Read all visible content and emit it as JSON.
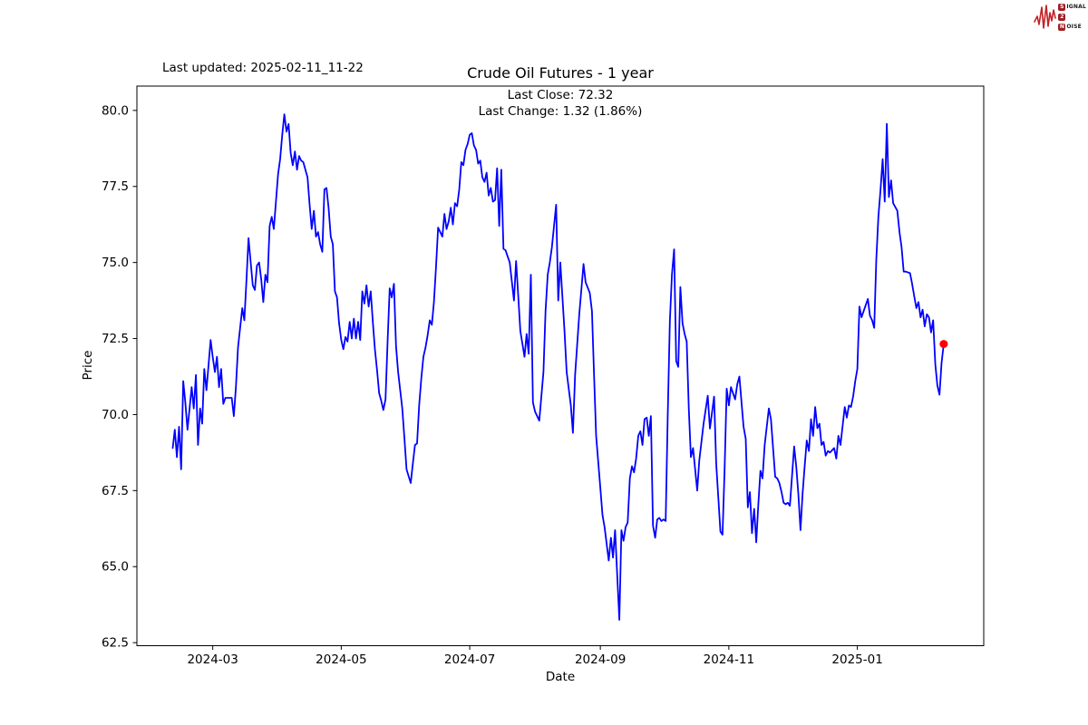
{
  "header": {
    "last_updated": "Last updated: 2025-02-11_11-22",
    "title": "Crude Oil Futures - 1 year",
    "subtitle_line1": "Last Close: 72.32",
    "subtitle_line2": "Last Change: 1.32 (1.86%)"
  },
  "axes": {
    "x_label": "Date",
    "y_label": "Price"
  },
  "branding": {
    "logo": {
      "word1_initial": "S",
      "word1_rest": "IGNAL",
      "word2": "2",
      "word3_initial": "N",
      "word3_rest": "OISE",
      "waveform_color": "#c32127",
      "box_color": "#9e1f24"
    }
  },
  "chart_data": {
    "type": "line",
    "title": "Crude Oil Futures - 1 year",
    "series_name": "Crude Oil Futures price",
    "xlabel": "Date",
    "ylabel": "Price",
    "line_color": "#0000ff",
    "marker_color": "#ff0000",
    "grid": false,
    "legend": "none",
    "last_close": 72.32,
    "last_change": 1.32,
    "last_change_pct": 1.86,
    "xlim": [
      "2024-01-25",
      "2025-03-02"
    ],
    "ylim": [
      62.4,
      80.8
    ],
    "y_ticks": [
      {
        "label": "80.0",
        "value": 80.0
      },
      {
        "label": "77.5",
        "value": 77.5
      },
      {
        "label": "75.0",
        "value": 75.0
      },
      {
        "label": "72.5",
        "value": 72.5
      },
      {
        "label": "70.0",
        "value": 70.0
      },
      {
        "label": "67.5",
        "value": 67.5
      },
      {
        "label": "65.0",
        "value": 65.0
      },
      {
        "label": "62.5",
        "value": 62.5
      }
    ],
    "x_ticks": [
      {
        "label": "2024-03",
        "date": "2024-03-01"
      },
      {
        "label": "2024-05",
        "date": "2024-05-01"
      },
      {
        "label": "2024-07",
        "date": "2024-07-01"
      },
      {
        "label": "2024-09",
        "date": "2024-09-01"
      },
      {
        "label": "2024-11",
        "date": "2024-11-01"
      },
      {
        "label": "2025-01",
        "date": "2025-01-01"
      }
    ],
    "points": [
      [
        "2024-02-11",
        68.9
      ],
      [
        "2024-02-12",
        69.5
      ],
      [
        "2024-02-13",
        68.6
      ],
      [
        "2024-02-14",
        69.6
      ],
      [
        "2024-02-15",
        68.2
      ],
      [
        "2024-02-16",
        71.1
      ],
      [
        "2024-02-17",
        70.4
      ],
      [
        "2024-02-18",
        69.5
      ],
      [
        "2024-02-20",
        70.9
      ],
      [
        "2024-02-21",
        70.2
      ],
      [
        "2024-02-22",
        71.3
      ],
      [
        "2024-02-23",
        69.0
      ],
      [
        "2024-02-24",
        70.2
      ],
      [
        "2024-02-25",
        69.7
      ],
      [
        "2024-02-26",
        71.5
      ],
      [
        "2024-02-27",
        70.8
      ],
      [
        "2024-02-29",
        72.45
      ],
      [
        "2024-03-01",
        71.9
      ],
      [
        "2024-03-02",
        71.4
      ],
      [
        "2024-03-03",
        71.9
      ],
      [
        "2024-03-04",
        70.9
      ],
      [
        "2024-03-05",
        71.5
      ],
      [
        "2024-03-06",
        70.35
      ],
      [
        "2024-03-07",
        70.55
      ],
      [
        "2024-03-10",
        70.55
      ],
      [
        "2024-03-11",
        69.95
      ],
      [
        "2024-03-12",
        70.9
      ],
      [
        "2024-03-13",
        72.2
      ],
      [
        "2024-03-15",
        73.5
      ],
      [
        "2024-03-16",
        73.1
      ],
      [
        "2024-03-17",
        74.4
      ],
      [
        "2024-03-18",
        75.8
      ],
      [
        "2024-03-20",
        74.25
      ],
      [
        "2024-03-21",
        74.1
      ],
      [
        "2024-03-22",
        74.9
      ],
      [
        "2024-03-23",
        75.0
      ],
      [
        "2024-03-24",
        74.45
      ],
      [
        "2024-03-25",
        73.7
      ],
      [
        "2024-03-26",
        74.6
      ],
      [
        "2024-03-27",
        74.35
      ],
      [
        "2024-03-28",
        76.2
      ],
      [
        "2024-03-29",
        76.5
      ],
      [
        "2024-03-30",
        76.1
      ],
      [
        "2024-04-01",
        77.9
      ],
      [
        "2024-04-02",
        78.4
      ],
      [
        "2024-04-03",
        79.2
      ],
      [
        "2024-04-04",
        79.87
      ],
      [
        "2024-04-05",
        79.3
      ],
      [
        "2024-04-06",
        79.55
      ],
      [
        "2024-04-07",
        78.6
      ],
      [
        "2024-04-08",
        78.2
      ],
      [
        "2024-04-09",
        78.65
      ],
      [
        "2024-04-10",
        78.05
      ],
      [
        "2024-04-11",
        78.5
      ],
      [
        "2024-04-12",
        78.35
      ],
      [
        "2024-04-13",
        78.3
      ],
      [
        "2024-04-15",
        77.8
      ],
      [
        "2024-04-16",
        76.9
      ],
      [
        "2024-04-17",
        76.1
      ],
      [
        "2024-04-18",
        76.7
      ],
      [
        "2024-04-19",
        75.85
      ],
      [
        "2024-04-20",
        76.0
      ],
      [
        "2024-04-21",
        75.6
      ],
      [
        "2024-04-22",
        75.35
      ],
      [
        "2024-04-23",
        77.4
      ],
      [
        "2024-04-24",
        77.45
      ],
      [
        "2024-04-25",
        76.8
      ],
      [
        "2024-04-26",
        75.85
      ],
      [
        "2024-04-27",
        75.6
      ],
      [
        "2024-04-28",
        74.05
      ],
      [
        "2024-04-29",
        73.85
      ],
      [
        "2024-04-30",
        73.0
      ],
      [
        "2024-05-01",
        72.45
      ],
      [
        "2024-05-02",
        72.15
      ],
      [
        "2024-05-03",
        72.55
      ],
      [
        "2024-05-04",
        72.4
      ],
      [
        "2024-05-05",
        73.05
      ],
      [
        "2024-05-06",
        72.5
      ],
      [
        "2024-05-07",
        73.15
      ],
      [
        "2024-05-08",
        72.5
      ],
      [
        "2024-05-09",
        73.05
      ],
      [
        "2024-05-10",
        72.45
      ],
      [
        "2024-05-11",
        74.05
      ],
      [
        "2024-05-12",
        73.65
      ],
      [
        "2024-05-13",
        74.25
      ],
      [
        "2024-05-14",
        73.55
      ],
      [
        "2024-05-15",
        74.05
      ],
      [
        "2024-05-16",
        73.05
      ],
      [
        "2024-05-17",
        72.15
      ],
      [
        "2024-05-18",
        71.45
      ],
      [
        "2024-05-19",
        70.7
      ],
      [
        "2024-05-20",
        70.45
      ],
      [
        "2024-05-21",
        70.15
      ],
      [
        "2024-05-22",
        70.5
      ],
      [
        "2024-05-23",
        72.4
      ],
      [
        "2024-05-24",
        74.15
      ],
      [
        "2024-05-25",
        73.85
      ],
      [
        "2024-05-26",
        74.3
      ],
      [
        "2024-05-27",
        72.25
      ],
      [
        "2024-05-28",
        71.4
      ],
      [
        "2024-05-30",
        70.2
      ],
      [
        "2024-05-31",
        69.2
      ],
      [
        "2024-06-01",
        68.2
      ],
      [
        "2024-06-03",
        67.75
      ],
      [
        "2024-06-04",
        68.4
      ],
      [
        "2024-06-05",
        69.0
      ],
      [
        "2024-06-06",
        69.05
      ],
      [
        "2024-06-07",
        70.3
      ],
      [
        "2024-06-08",
        71.2
      ],
      [
        "2024-06-09",
        71.9
      ],
      [
        "2024-06-10",
        72.2
      ],
      [
        "2024-06-11",
        72.6
      ],
      [
        "2024-06-12",
        73.1
      ],
      [
        "2024-06-13",
        72.95
      ],
      [
        "2024-06-14",
        73.7
      ],
      [
        "2024-06-15",
        74.85
      ],
      [
        "2024-06-16",
        76.15
      ],
      [
        "2024-06-18",
        75.85
      ],
      [
        "2024-06-19",
        76.6
      ],
      [
        "2024-06-20",
        76.1
      ],
      [
        "2024-06-21",
        76.35
      ],
      [
        "2024-06-22",
        76.8
      ],
      [
        "2024-06-23",
        76.25
      ],
      [
        "2024-06-24",
        76.95
      ],
      [
        "2024-06-25",
        76.85
      ],
      [
        "2024-06-26",
        77.4
      ],
      [
        "2024-06-27",
        78.3
      ],
      [
        "2024-06-28",
        78.2
      ],
      [
        "2024-06-29",
        78.7
      ],
      [
        "2024-06-30",
        78.9
      ],
      [
        "2024-07-01",
        79.2
      ],
      [
        "2024-07-02",
        79.25
      ],
      [
        "2024-07-03",
        78.85
      ],
      [
        "2024-07-04",
        78.7
      ],
      [
        "2024-07-05",
        78.25
      ],
      [
        "2024-07-06",
        78.35
      ],
      [
        "2024-07-07",
        77.8
      ],
      [
        "2024-07-08",
        77.65
      ],
      [
        "2024-07-09",
        77.95
      ],
      [
        "2024-07-10",
        77.2
      ],
      [
        "2024-07-11",
        77.45
      ],
      [
        "2024-07-12",
        77.0
      ],
      [
        "2024-07-13",
        77.05
      ],
      [
        "2024-07-14",
        78.1
      ],
      [
        "2024-07-15",
        76.2
      ],
      [
        "2024-07-16",
        78.05
      ],
      [
        "2024-07-17",
        75.45
      ],
      [
        "2024-07-18",
        75.4
      ],
      [
        "2024-07-19",
        75.2
      ],
      [
        "2024-07-20",
        75.0
      ],
      [
        "2024-07-22",
        73.75
      ],
      [
        "2024-07-23",
        75.05
      ],
      [
        "2024-07-24",
        73.95
      ],
      [
        "2024-07-25",
        72.75
      ],
      [
        "2024-07-27",
        71.9
      ],
      [
        "2024-07-28",
        72.65
      ],
      [
        "2024-07-29",
        72.0
      ],
      [
        "2024-07-30",
        74.6
      ],
      [
        "2024-07-31",
        70.4
      ],
      [
        "2024-08-01",
        70.1
      ],
      [
        "2024-08-03",
        69.8
      ],
      [
        "2024-08-05",
        71.4
      ],
      [
        "2024-08-06",
        73.4
      ],
      [
        "2024-08-07",
        74.6
      ],
      [
        "2024-08-08",
        75.0
      ],
      [
        "2024-08-09",
        75.5
      ],
      [
        "2024-08-11",
        76.9
      ],
      [
        "2024-08-12",
        73.75
      ],
      [
        "2024-08-13",
        75.0
      ],
      [
        "2024-08-15",
        72.75
      ],
      [
        "2024-08-16",
        71.4
      ],
      [
        "2024-08-18",
        70.3
      ],
      [
        "2024-08-19",
        69.4
      ],
      [
        "2024-08-20",
        71.3
      ],
      [
        "2024-08-22",
        73.3
      ],
      [
        "2024-08-24",
        74.95
      ],
      [
        "2024-08-25",
        74.35
      ],
      [
        "2024-08-27",
        74.0
      ],
      [
        "2024-08-28",
        73.4
      ],
      [
        "2024-08-29",
        71.3
      ],
      [
        "2024-08-30",
        69.3
      ],
      [
        "2024-09-01",
        67.6
      ],
      [
        "2024-09-02",
        66.7
      ],
      [
        "2024-09-03",
        66.3
      ],
      [
        "2024-09-05",
        65.2
      ],
      [
        "2024-09-06",
        65.95
      ],
      [
        "2024-09-07",
        65.3
      ],
      [
        "2024-09-08",
        66.2
      ],
      [
        "2024-09-10",
        63.25
      ],
      [
        "2024-09-11",
        66.2
      ],
      [
        "2024-09-12",
        65.85
      ],
      [
        "2024-09-13",
        66.3
      ],
      [
        "2024-09-14",
        66.45
      ],
      [
        "2024-09-15",
        67.9
      ],
      [
        "2024-09-16",
        68.3
      ],
      [
        "2024-09-17",
        68.1
      ],
      [
        "2024-09-18",
        68.55
      ],
      [
        "2024-09-19",
        69.3
      ],
      [
        "2024-09-20",
        69.45
      ],
      [
        "2024-09-21",
        69.0
      ],
      [
        "2024-09-22",
        69.85
      ],
      [
        "2024-09-23",
        69.9
      ],
      [
        "2024-09-24",
        69.3
      ],
      [
        "2024-09-25",
        69.95
      ],
      [
        "2024-09-26",
        66.35
      ],
      [
        "2024-09-27",
        65.95
      ],
      [
        "2024-09-28",
        66.55
      ],
      [
        "2024-09-29",
        66.6
      ],
      [
        "2024-09-30",
        66.5
      ],
      [
        "2024-10-01",
        66.55
      ],
      [
        "2024-10-02",
        66.5
      ],
      [
        "2024-10-03",
        70.0
      ],
      [
        "2024-10-04",
        73.05
      ],
      [
        "2024-10-05",
        74.6
      ],
      [
        "2024-10-06",
        75.43
      ],
      [
        "2024-10-07",
        71.76
      ],
      [
        "2024-10-08",
        71.57
      ],
      [
        "2024-10-09",
        74.19
      ],
      [
        "2024-10-10",
        73.0
      ],
      [
        "2024-10-11",
        72.65
      ],
      [
        "2024-10-12",
        72.4
      ],
      [
        "2024-10-13",
        70.2
      ],
      [
        "2024-10-14",
        68.6
      ],
      [
        "2024-10-15",
        68.9
      ],
      [
        "2024-10-17",
        67.5
      ],
      [
        "2024-10-18",
        68.5
      ],
      [
        "2024-10-20",
        69.7
      ],
      [
        "2024-10-22",
        70.62
      ],
      [
        "2024-10-23",
        69.54
      ],
      [
        "2024-10-25",
        70.59
      ],
      [
        "2024-10-26",
        68.4
      ],
      [
        "2024-10-28",
        66.15
      ],
      [
        "2024-10-29",
        66.05
      ],
      [
        "2024-10-30",
        68.2
      ],
      [
        "2024-10-31",
        70.85
      ],
      [
        "2024-11-01",
        70.3
      ],
      [
        "2024-11-02",
        70.9
      ],
      [
        "2024-11-04",
        70.5
      ],
      [
        "2024-11-05",
        71.0
      ],
      [
        "2024-11-06",
        71.25
      ],
      [
        "2024-11-08",
        69.6
      ],
      [
        "2024-11-09",
        69.2
      ],
      [
        "2024-11-10",
        66.95
      ],
      [
        "2024-11-11",
        67.45
      ],
      [
        "2024-11-12",
        66.1
      ],
      [
        "2024-11-13",
        66.9
      ],
      [
        "2024-11-14",
        65.8
      ],
      [
        "2024-11-15",
        67.05
      ],
      [
        "2024-11-16",
        68.15
      ],
      [
        "2024-11-17",
        67.9
      ],
      [
        "2024-11-18",
        69.0
      ],
      [
        "2024-11-20",
        70.2
      ],
      [
        "2024-11-21",
        69.85
      ],
      [
        "2024-11-23",
        67.95
      ],
      [
        "2024-11-24",
        67.9
      ],
      [
        "2024-11-25",
        67.75
      ],
      [
        "2024-11-26",
        67.45
      ],
      [
        "2024-11-27",
        67.1
      ],
      [
        "2024-11-28",
        67.05
      ],
      [
        "2024-11-29",
        67.1
      ],
      [
        "2024-11-30",
        67.0
      ],
      [
        "2024-12-02",
        68.95
      ],
      [
        "2024-12-03",
        68.3
      ],
      [
        "2024-12-04",
        67.4
      ],
      [
        "2024-12-05",
        66.2
      ],
      [
        "2024-12-06",
        67.4
      ],
      [
        "2024-12-07",
        68.3
      ],
      [
        "2024-12-08",
        69.15
      ],
      [
        "2024-12-09",
        68.8
      ],
      [
        "2024-12-10",
        69.85
      ],
      [
        "2024-12-11",
        69.3
      ],
      [
        "2024-12-12",
        70.25
      ],
      [
        "2024-12-13",
        69.55
      ],
      [
        "2024-12-14",
        69.7
      ],
      [
        "2024-12-15",
        69.0
      ],
      [
        "2024-12-16",
        69.1
      ],
      [
        "2024-12-17",
        68.65
      ],
      [
        "2024-12-18",
        68.8
      ],
      [
        "2024-12-19",
        68.75
      ],
      [
        "2024-12-21",
        68.9
      ],
      [
        "2024-12-22",
        68.55
      ],
      [
        "2024-12-23",
        69.3
      ],
      [
        "2024-12-24",
        69.0
      ],
      [
        "2024-12-26",
        70.25
      ],
      [
        "2024-12-27",
        69.9
      ],
      [
        "2024-12-28",
        70.3
      ],
      [
        "2024-12-29",
        70.25
      ],
      [
        "2024-12-30",
        70.6
      ],
      [
        "2024-12-31",
        71.1
      ],
      [
        "2025-01-01",
        71.5
      ],
      [
        "2025-01-02",
        73.55
      ],
      [
        "2025-01-03",
        73.2
      ],
      [
        "2025-01-06",
        73.8
      ],
      [
        "2025-01-07",
        73.25
      ],
      [
        "2025-01-08",
        73.1
      ],
      [
        "2025-01-09",
        72.85
      ],
      [
        "2025-01-10",
        75.1
      ],
      [
        "2025-01-11",
        76.5
      ],
      [
        "2025-01-12",
        77.4
      ],
      [
        "2025-01-13",
        78.4
      ],
      [
        "2025-01-14",
        77.0
      ],
      [
        "2025-01-15",
        79.56
      ],
      [
        "2025-01-16",
        77.15
      ],
      [
        "2025-01-17",
        77.7
      ],
      [
        "2025-01-18",
        76.95
      ],
      [
        "2025-01-20",
        76.7
      ],
      [
        "2025-01-21",
        76.0
      ],
      [
        "2025-01-22",
        75.5
      ],
      [
        "2025-01-23",
        74.7
      ],
      [
        "2025-01-24",
        74.7
      ],
      [
        "2025-01-26",
        74.65
      ],
      [
        "2025-01-27",
        74.3
      ],
      [
        "2025-01-28",
        73.9
      ],
      [
        "2025-01-29",
        73.5
      ],
      [
        "2025-01-30",
        73.7
      ],
      [
        "2025-01-31",
        73.2
      ],
      [
        "2025-02-01",
        73.45
      ],
      [
        "2025-02-02",
        72.9
      ],
      [
        "2025-02-03",
        73.3
      ],
      [
        "2025-02-04",
        73.2
      ],
      [
        "2025-02-05",
        72.7
      ],
      [
        "2025-02-06",
        73.1
      ],
      [
        "2025-02-07",
        71.65
      ],
      [
        "2025-02-08",
        70.95
      ],
      [
        "2025-02-09",
        70.65
      ],
      [
        "2025-02-10",
        71.7
      ],
      [
        "2025-02-11",
        72.32
      ]
    ]
  }
}
